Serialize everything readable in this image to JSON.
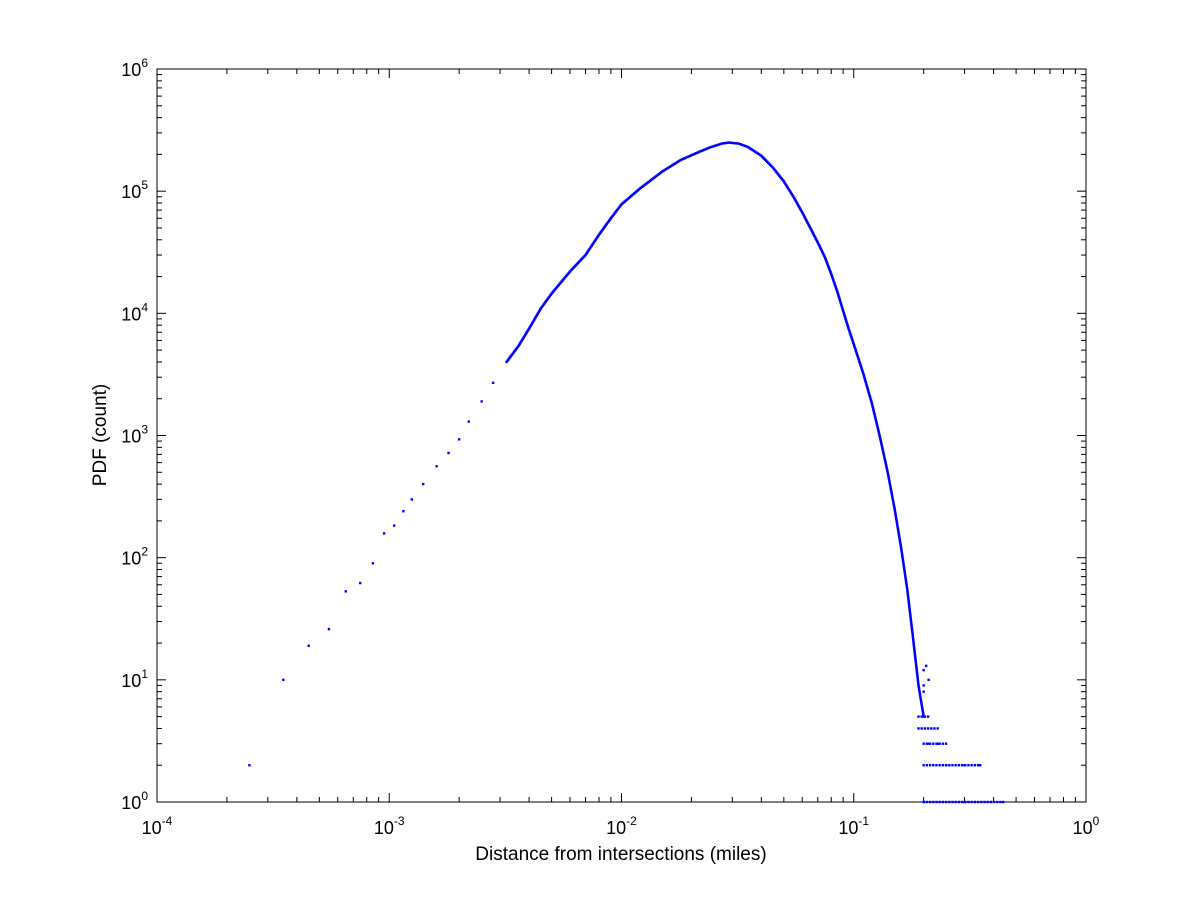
{
  "chart_data": {
    "type": "scatter",
    "title": "",
    "xlabel": "Distance from intersections (miles)",
    "ylabel": "PDF (count)",
    "xscale": "log",
    "yscale": "log",
    "xlim": [
      0.0001,
      1
    ],
    "ylim": [
      1,
      1000000
    ],
    "grid": false,
    "legend": "none",
    "marker": "dot",
    "colors": {
      "series": "#0000ff",
      "axes": "#000000",
      "background": "#ffffff"
    },
    "x_ticks": [
      {
        "base": "10",
        "exp": "-4",
        "value": 0.0001
      },
      {
        "base": "10",
        "exp": "-3",
        "value": 0.001
      },
      {
        "base": "10",
        "exp": "-2",
        "value": 0.01
      },
      {
        "base": "10",
        "exp": "-1",
        "value": 0.1
      },
      {
        "base": "10",
        "exp": "0",
        "value": 1
      }
    ],
    "y_ticks": [
      {
        "base": "10",
        "exp": "0",
        "value": 1
      },
      {
        "base": "10",
        "exp": "1",
        "value": 10
      },
      {
        "base": "10",
        "exp": "2",
        "value": 100
      },
      {
        "base": "10",
        "exp": "3",
        "value": 1000
      },
      {
        "base": "10",
        "exp": "4",
        "value": 10000
      },
      {
        "base": "10",
        "exp": "5",
        "value": 100000
      },
      {
        "base": "10",
        "exp": "6",
        "value": 1000000
      }
    ],
    "series": [
      {
        "name": "PDF",
        "sampled_points": [
          [
            0.00025,
            2
          ],
          [
            0.00035,
            10
          ],
          [
            0.00045,
            19
          ],
          [
            0.00055,
            26
          ],
          [
            0.00065,
            53
          ],
          [
            0.00075,
            62
          ],
          [
            0.00085,
            90
          ],
          [
            0.00095,
            158
          ],
          [
            0.00105,
            183
          ],
          [
            0.00115,
            240
          ],
          [
            0.00125,
            300
          ],
          [
            0.0014,
            400
          ],
          [
            0.0016,
            560
          ],
          [
            0.0018,
            720
          ],
          [
            0.002,
            930
          ],
          [
            0.0022,
            1300
          ],
          [
            0.0025,
            1900
          ],
          [
            0.0028,
            2700
          ],
          [
            0.0032,
            4000
          ],
          [
            0.0036,
            5400
          ],
          [
            0.004,
            7500
          ],
          [
            0.0045,
            11000
          ],
          [
            0.005,
            14500
          ],
          [
            0.006,
            22000
          ],
          [
            0.007,
            30000
          ],
          [
            0.008,
            44000
          ],
          [
            0.009,
            60000
          ],
          [
            0.01,
            78000
          ],
          [
            0.012,
            105000
          ],
          [
            0.015,
            145000
          ],
          [
            0.018,
            180000
          ],
          [
            0.021,
            205000
          ],
          [
            0.024,
            228000
          ],
          [
            0.027,
            245000
          ],
          [
            0.029,
            250000
          ],
          [
            0.032,
            245000
          ],
          [
            0.035,
            230000
          ],
          [
            0.04,
            195000
          ],
          [
            0.045,
            155000
          ],
          [
            0.05,
            120000
          ],
          [
            0.055,
            90000
          ],
          [
            0.06,
            67000
          ],
          [
            0.065,
            50000
          ],
          [
            0.07,
            38000
          ],
          [
            0.075,
            29000
          ],
          [
            0.08,
            21000
          ],
          [
            0.085,
            15000
          ],
          [
            0.09,
            10500
          ],
          [
            0.095,
            7500
          ],
          [
            0.1,
            5600
          ],
          [
            0.11,
            3200
          ],
          [
            0.12,
            1800
          ],
          [
            0.13,
            950
          ],
          [
            0.14,
            500
          ],
          [
            0.15,
            250
          ],
          [
            0.16,
            120
          ],
          [
            0.17,
            55
          ],
          [
            0.18,
            22
          ],
          [
            0.19,
            9
          ],
          [
            0.2,
            5
          ],
          [
            0.21,
            3
          ],
          [
            0.23,
            3
          ],
          [
            0.25,
            2
          ],
          [
            0.3,
            2
          ],
          [
            0.35,
            2
          ],
          [
            0.2,
            1
          ],
          [
            0.3,
            1
          ],
          [
            0.44,
            1
          ]
        ]
      }
    ]
  }
}
